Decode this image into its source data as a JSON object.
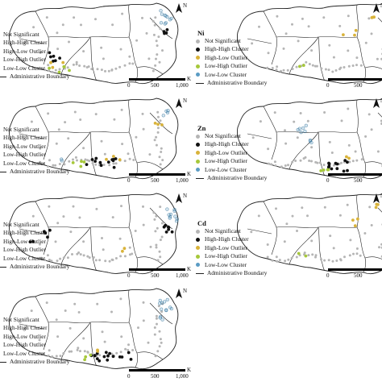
{
  "legend": {
    "not_significant": "Not Significant",
    "high_high": "High-High Cluster",
    "high_low": "High-Low Outlier",
    "low_high": "Low-High Outlier",
    "low_low": "Low-Low Cluster",
    "boundary": "Administrative Boundary"
  },
  "scale": {
    "unit": "Km",
    "ticks": [
      "0",
      "500",
      "1,000"
    ]
  },
  "north_label": "N",
  "colors": {
    "not_significant": "#b5b5b5",
    "high_high": "#111111",
    "high_low": "#d9b33a",
    "low_high": "#a6c83a",
    "low_low": "#5b9cc4",
    "boundary": "#222222",
    "map_fill": "#ffffff"
  },
  "panels": [
    {
      "id": "p1",
      "element": "",
      "pattern": "cluster_sw_and_ne"
    },
    {
      "id": "p2",
      "element": "Ni",
      "pattern": "sparse"
    },
    {
      "id": "p3",
      "element": "",
      "pattern": "cluster_south"
    },
    {
      "id": "p4",
      "element": "Zn",
      "pattern": "cluster_south_ll_north"
    },
    {
      "id": "p5",
      "element": "",
      "pattern": "cluster_east"
    },
    {
      "id": "p6",
      "element": "Cd",
      "pattern": "sparse"
    },
    {
      "id": "p7",
      "element": "",
      "pattern": "cluster_south_ll_ne"
    }
  ]
}
